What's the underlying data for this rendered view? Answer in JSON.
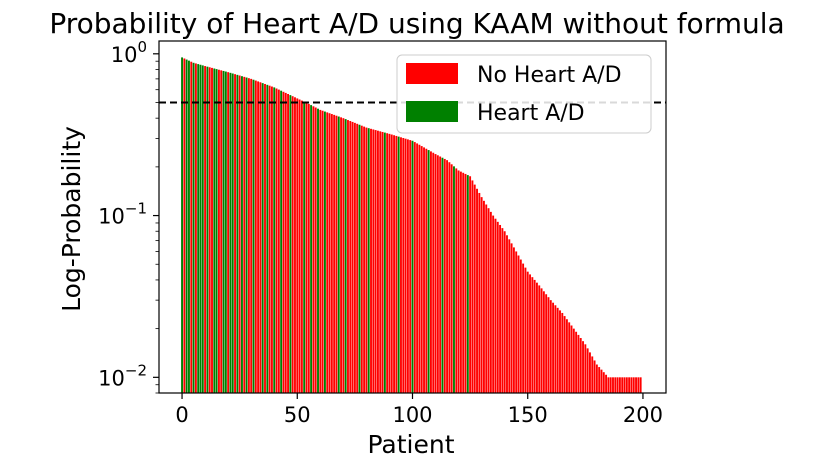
{
  "chart_data": {
    "type": "bar",
    "title": "Probability of Heart A/D using KAAM without formula",
    "xlabel": "Patient",
    "ylabel": "Log-Probability",
    "yscale": "log",
    "xlim": [
      -10,
      210
    ],
    "ylim": [
      0.008,
      1.2
    ],
    "xticks": [
      0,
      50,
      100,
      150,
      200
    ],
    "yticks": [
      {
        "value": 1,
        "base": "10",
        "exp": "0"
      },
      {
        "value": 0.1,
        "base": "10",
        "exp": "−1"
      },
      {
        "value": 0.01,
        "base": "10",
        "exp": "−2"
      }
    ],
    "threshold": 0.5,
    "legend": {
      "position": "top-right",
      "entries": [
        {
          "label": "No Heart A/D",
          "color": "#ff0000"
        },
        {
          "label": "Heart A/D",
          "color": "#008000"
        }
      ]
    },
    "colors": {
      "no_heart": "#ff0000",
      "heart": "#008000"
    },
    "prob_anchors": [
      [
        0,
        0.95
      ],
      [
        5,
        0.88
      ],
      [
        10,
        0.84
      ],
      [
        20,
        0.77
      ],
      [
        30,
        0.7
      ],
      [
        40,
        0.62
      ],
      [
        50,
        0.53
      ],
      [
        55,
        0.49
      ],
      [
        60,
        0.45
      ],
      [
        70,
        0.4
      ],
      [
        80,
        0.35
      ],
      [
        90,
        0.32
      ],
      [
        100,
        0.29
      ],
      [
        110,
        0.24
      ],
      [
        115,
        0.22
      ],
      [
        120,
        0.19
      ],
      [
        125,
        0.175
      ],
      [
        130,
        0.13
      ],
      [
        135,
        0.1
      ],
      [
        140,
        0.08
      ],
      [
        145,
        0.06
      ],
      [
        150,
        0.045
      ],
      [
        155,
        0.037
      ],
      [
        160,
        0.03
      ],
      [
        165,
        0.025
      ],
      [
        170,
        0.02
      ],
      [
        175,
        0.016
      ],
      [
        180,
        0.012
      ],
      [
        185,
        0.01
      ],
      [
        199,
        0.01
      ]
    ],
    "heart_patients": [
      0,
      2,
      3,
      5,
      7,
      8,
      9,
      11,
      14,
      15,
      18,
      19,
      21,
      22,
      24,
      26,
      28,
      31,
      35,
      37,
      40,
      43,
      47,
      53,
      56,
      59,
      62,
      68,
      71,
      77,
      81,
      88,
      94,
      100,
      107,
      113,
      118,
      124
    ]
  }
}
